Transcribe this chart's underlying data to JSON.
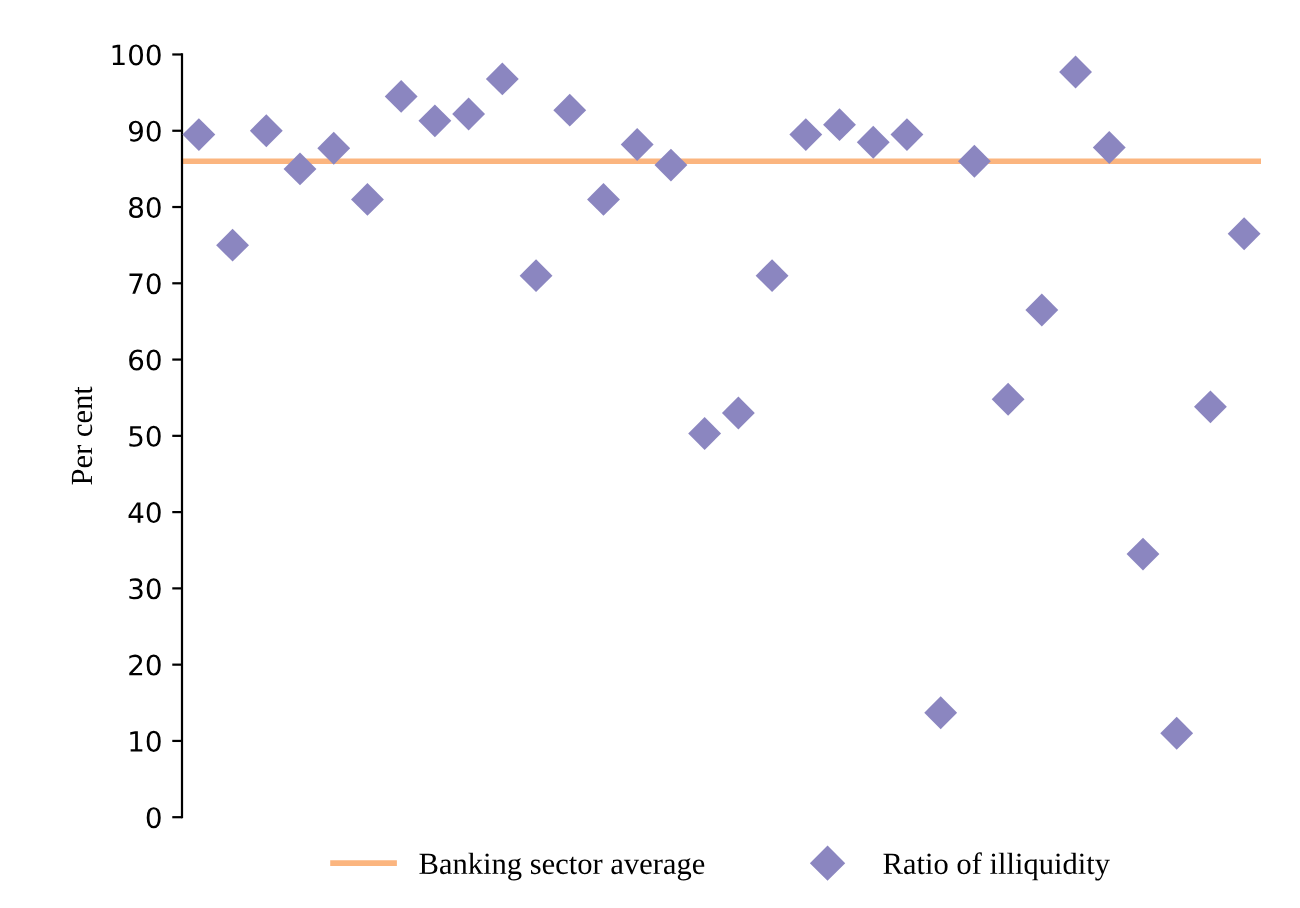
{
  "chart_data": {
    "type": "scatter",
    "ylabel": "Per cent",
    "categories": [
      null,
      null,
      null,
      null,
      null,
      null,
      null,
      null,
      null,
      null,
      null,
      null,
      null,
      null,
      null,
      null,
      null,
      null,
      null,
      null,
      null,
      null,
      null,
      null,
      null,
      null,
      null,
      null,
      null,
      null,
      null,
      null
    ],
    "series": [
      {
        "name": "Ratio of illiquidity",
        "color": "#8b86c0",
        "marker": "diamond",
        "values": [
          89.5,
          75,
          90,
          85,
          87.7,
          81,
          94.5,
          91.3,
          92.2,
          96.8,
          71,
          92.7,
          81,
          88.2,
          85.5,
          50.3,
          53,
          71,
          89.5,
          90.8,
          88.5,
          89.5,
          13.7,
          86,
          54.8,
          66.5,
          97.7,
          87.8,
          34.5,
          11,
          53.8,
          76.5
        ]
      }
    ],
    "ref_lines": [
      {
        "axis": "y",
        "value": 86,
        "label": "Banking sector average",
        "color": "#fbb57f"
      }
    ],
    "ylim": [
      0,
      100
    ],
    "yticks": [
      0,
      10,
      20,
      30,
      40,
      50,
      60,
      70,
      80,
      90,
      100
    ],
    "grid": false,
    "legend": "bottom"
  }
}
